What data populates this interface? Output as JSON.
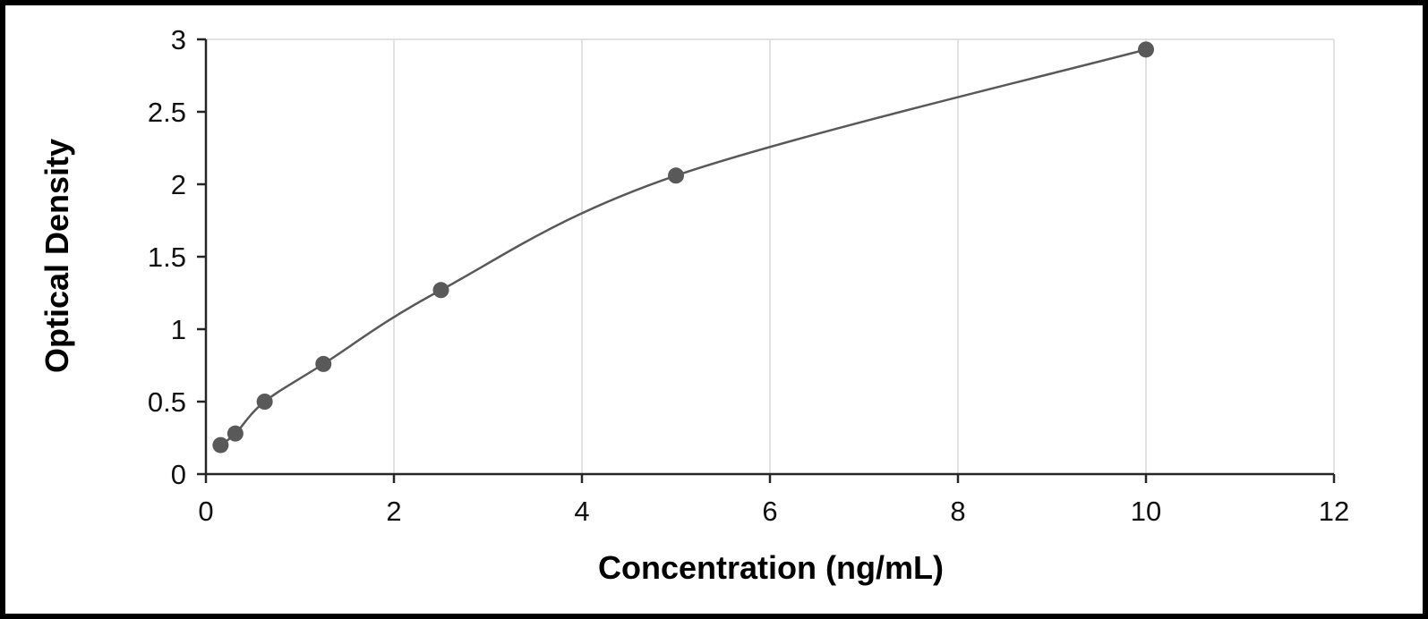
{
  "chart_data": {
    "type": "line",
    "title": "",
    "xlabel": "Concentration (ng/mL)",
    "ylabel": "Optical Density",
    "xlim": [
      0,
      12
    ],
    "ylim": [
      0,
      3
    ],
    "x_ticks": [
      0,
      2,
      4,
      6,
      8,
      10,
      12
    ],
    "x_tick_labels": [
      "0",
      "2",
      "4",
      "6",
      "8",
      "10",
      "12"
    ],
    "y_ticks": [
      0,
      0.5,
      1,
      1.5,
      2,
      2.5,
      3
    ],
    "y_tick_labels": [
      "0",
      "0.5",
      "1",
      "1.5",
      "2",
      "2.5",
      "3"
    ],
    "grid": "vertical-only",
    "legend": "none",
    "series": [
      {
        "name": "standard-curve",
        "marker": "circle",
        "points": [
          [
            0.156,
            0.2
          ],
          [
            0.313,
            0.28
          ],
          [
            0.625,
            0.5
          ],
          [
            1.25,
            0.76
          ],
          [
            2.5,
            1.27
          ],
          [
            5.0,
            2.06
          ],
          [
            10.0,
            2.93
          ]
        ]
      }
    ],
    "colors": {
      "line": "#595959",
      "marker": "#595959",
      "grid": "#d9d9d9",
      "axis": "#262626",
      "text": "#000000",
      "background": "#ffffff",
      "frame": "#000000"
    }
  }
}
